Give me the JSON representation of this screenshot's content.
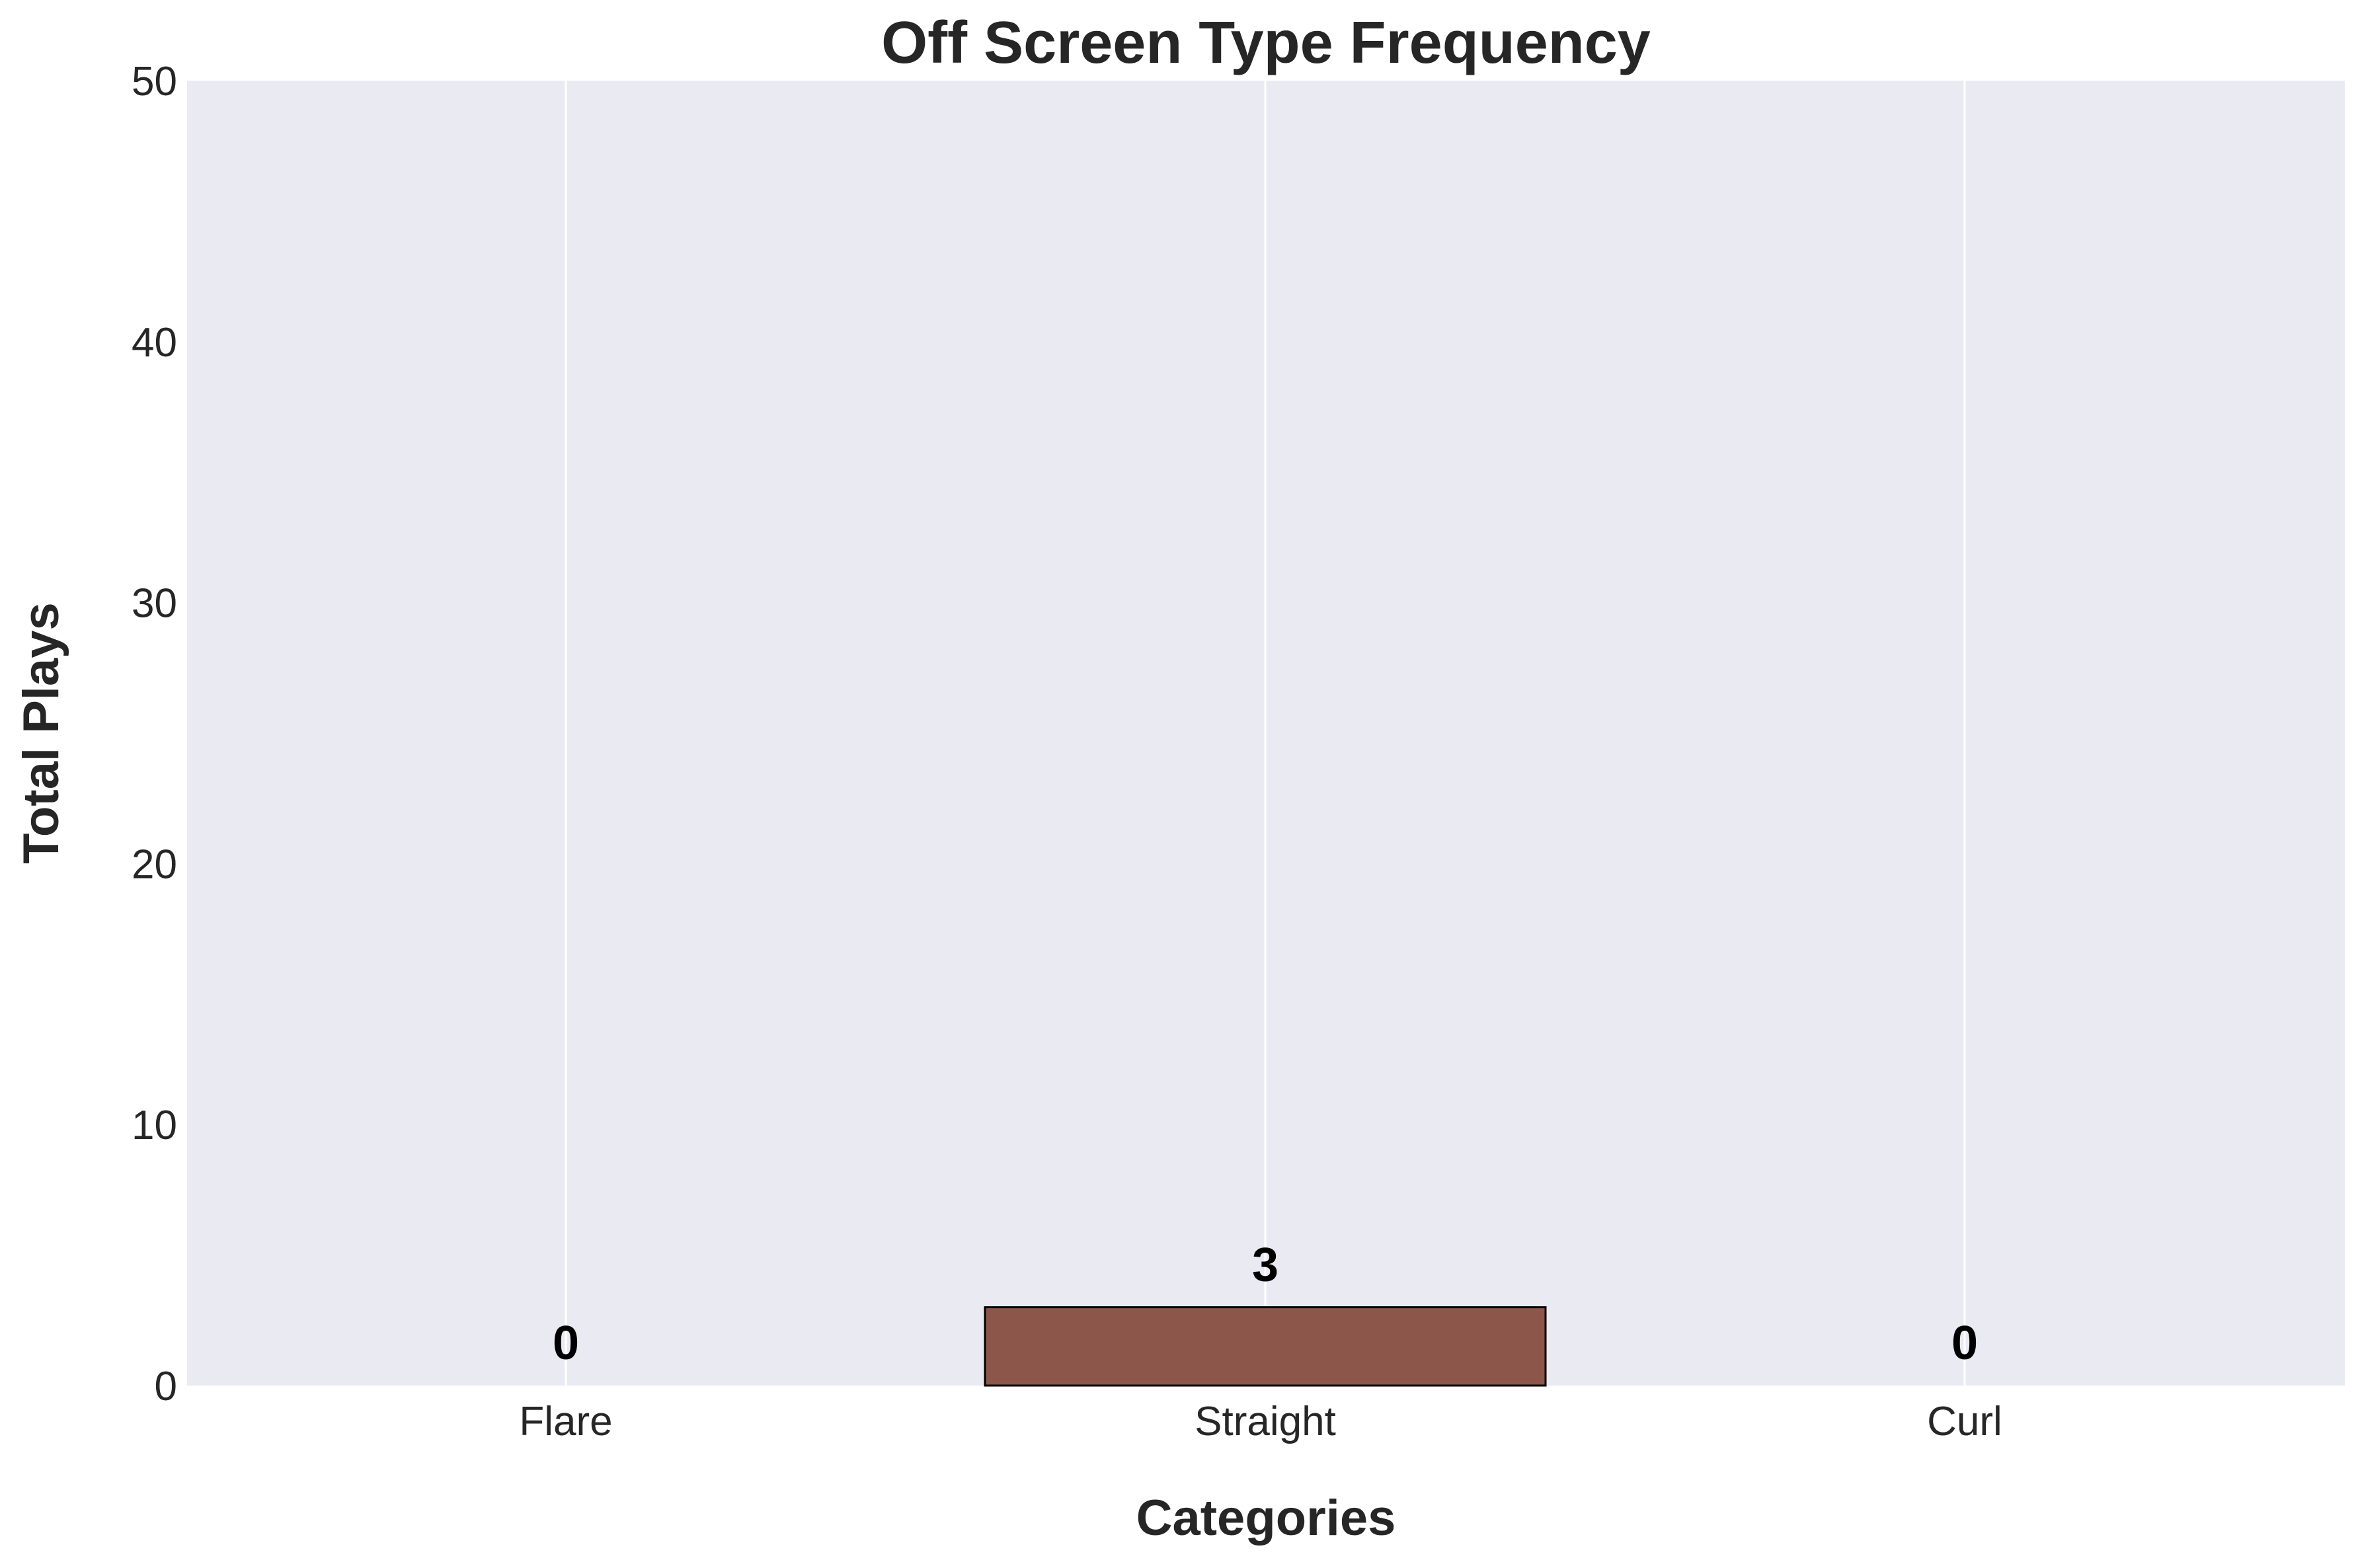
{
  "chart_data": {
    "type": "bar",
    "title": "Off Screen Type Frequency",
    "xlabel": "Categories",
    "ylabel": "Total Plays",
    "categories": [
      "Flare",
      "Straight",
      "Curl"
    ],
    "values": [
      0,
      3,
      0
    ],
    "data_labels": [
      "0",
      "3",
      "0"
    ],
    "ylim": [
      0,
      50
    ],
    "yticks": [
      0,
      10,
      20,
      30,
      40,
      50
    ],
    "ytick_labels": [
      "0",
      "10",
      "20",
      "30",
      "40",
      "50"
    ],
    "grid": true,
    "grid_axis": "x",
    "legend": "none",
    "colors": {
      "plot_background": "#eaeaf2",
      "bar_fill": "#8c564b",
      "bar_edge": "#000000",
      "grid": "#ffffff",
      "text": "#262626",
      "data_label": "#000000"
    }
  }
}
